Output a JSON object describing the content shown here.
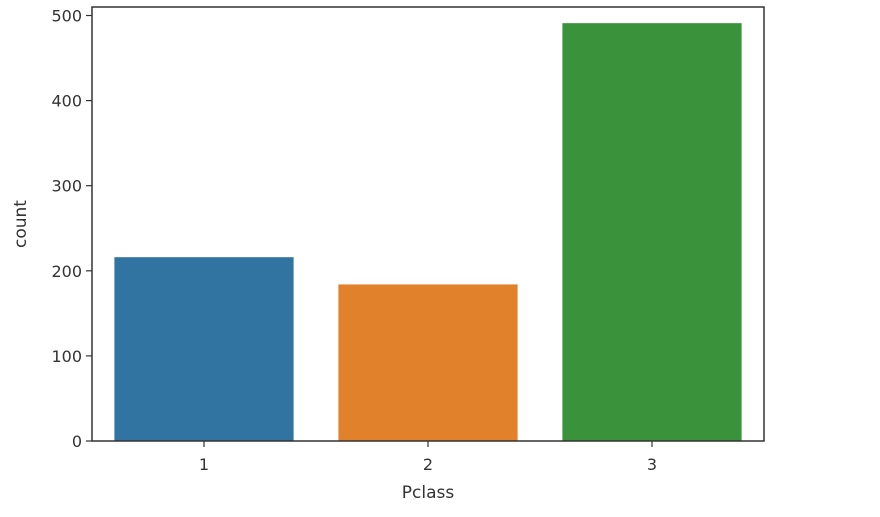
{
  "chart_data": {
    "type": "bar",
    "xlabel": "Pclass",
    "ylabel": "count",
    "categories": [
      "1",
      "2",
      "3"
    ],
    "values": [
      216,
      184,
      491
    ],
    "colors": [
      "#3274a1",
      "#e1812c",
      "#3a923a"
    ],
    "ylim": [
      0,
      510
    ],
    "yticks": [
      0,
      100,
      200,
      300,
      400,
      500
    ],
    "grid": false,
    "legend": "none"
  }
}
